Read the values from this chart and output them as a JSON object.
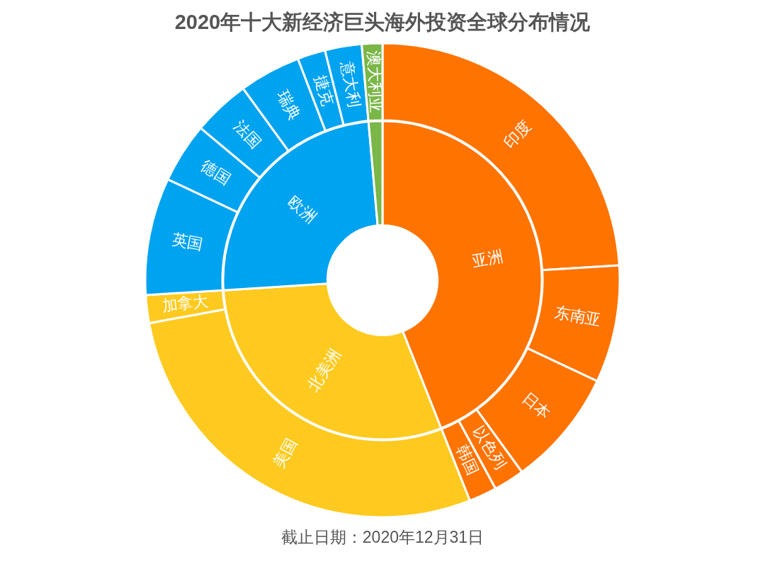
{
  "chart_data": [
    {
      "type": "donut",
      "title": "2020年十大新经济巨头海外投资全球分布情况",
      "annotations": [
        "截止日期：2020年12月31日"
      ],
      "categories": [
        "亚洲",
        "北美洲",
        "欧洲",
        null
      ],
      "values": [
        44.0,
        30.0,
        24.6,
        1.4
      ],
      "colors": [
        "#ff7300",
        "#ffca1f",
        "#00a3f0",
        "#7ab648"
      ]
    },
    {
      "type": "donut",
      "categories": [
        "印度",
        "东南亚",
        "日本",
        "以色列",
        "韩国",
        "美国",
        "加拿大",
        "英国",
        "德国",
        "法国",
        "瑞典",
        "捷克",
        "意大利",
        "澳大利亚"
      ],
      "values": [
        24.0,
        8.0,
        8.0,
        2.1,
        1.9,
        28.1,
        1.9,
        8.0,
        4.1,
        3.9,
        4.2,
        1.9,
        2.5,
        1.4
      ],
      "colors": [
        "#ff7300",
        "#ff7300",
        "#ff7300",
        "#ff7300",
        "#ff7300",
        "#ffca1f",
        "#ffca1f",
        "#00a3f0",
        "#00a3f0",
        "#00a3f0",
        "#00a3f0",
        "#00a3f0",
        "#00a3f0",
        "#7ab648"
      ]
    }
  ]
}
